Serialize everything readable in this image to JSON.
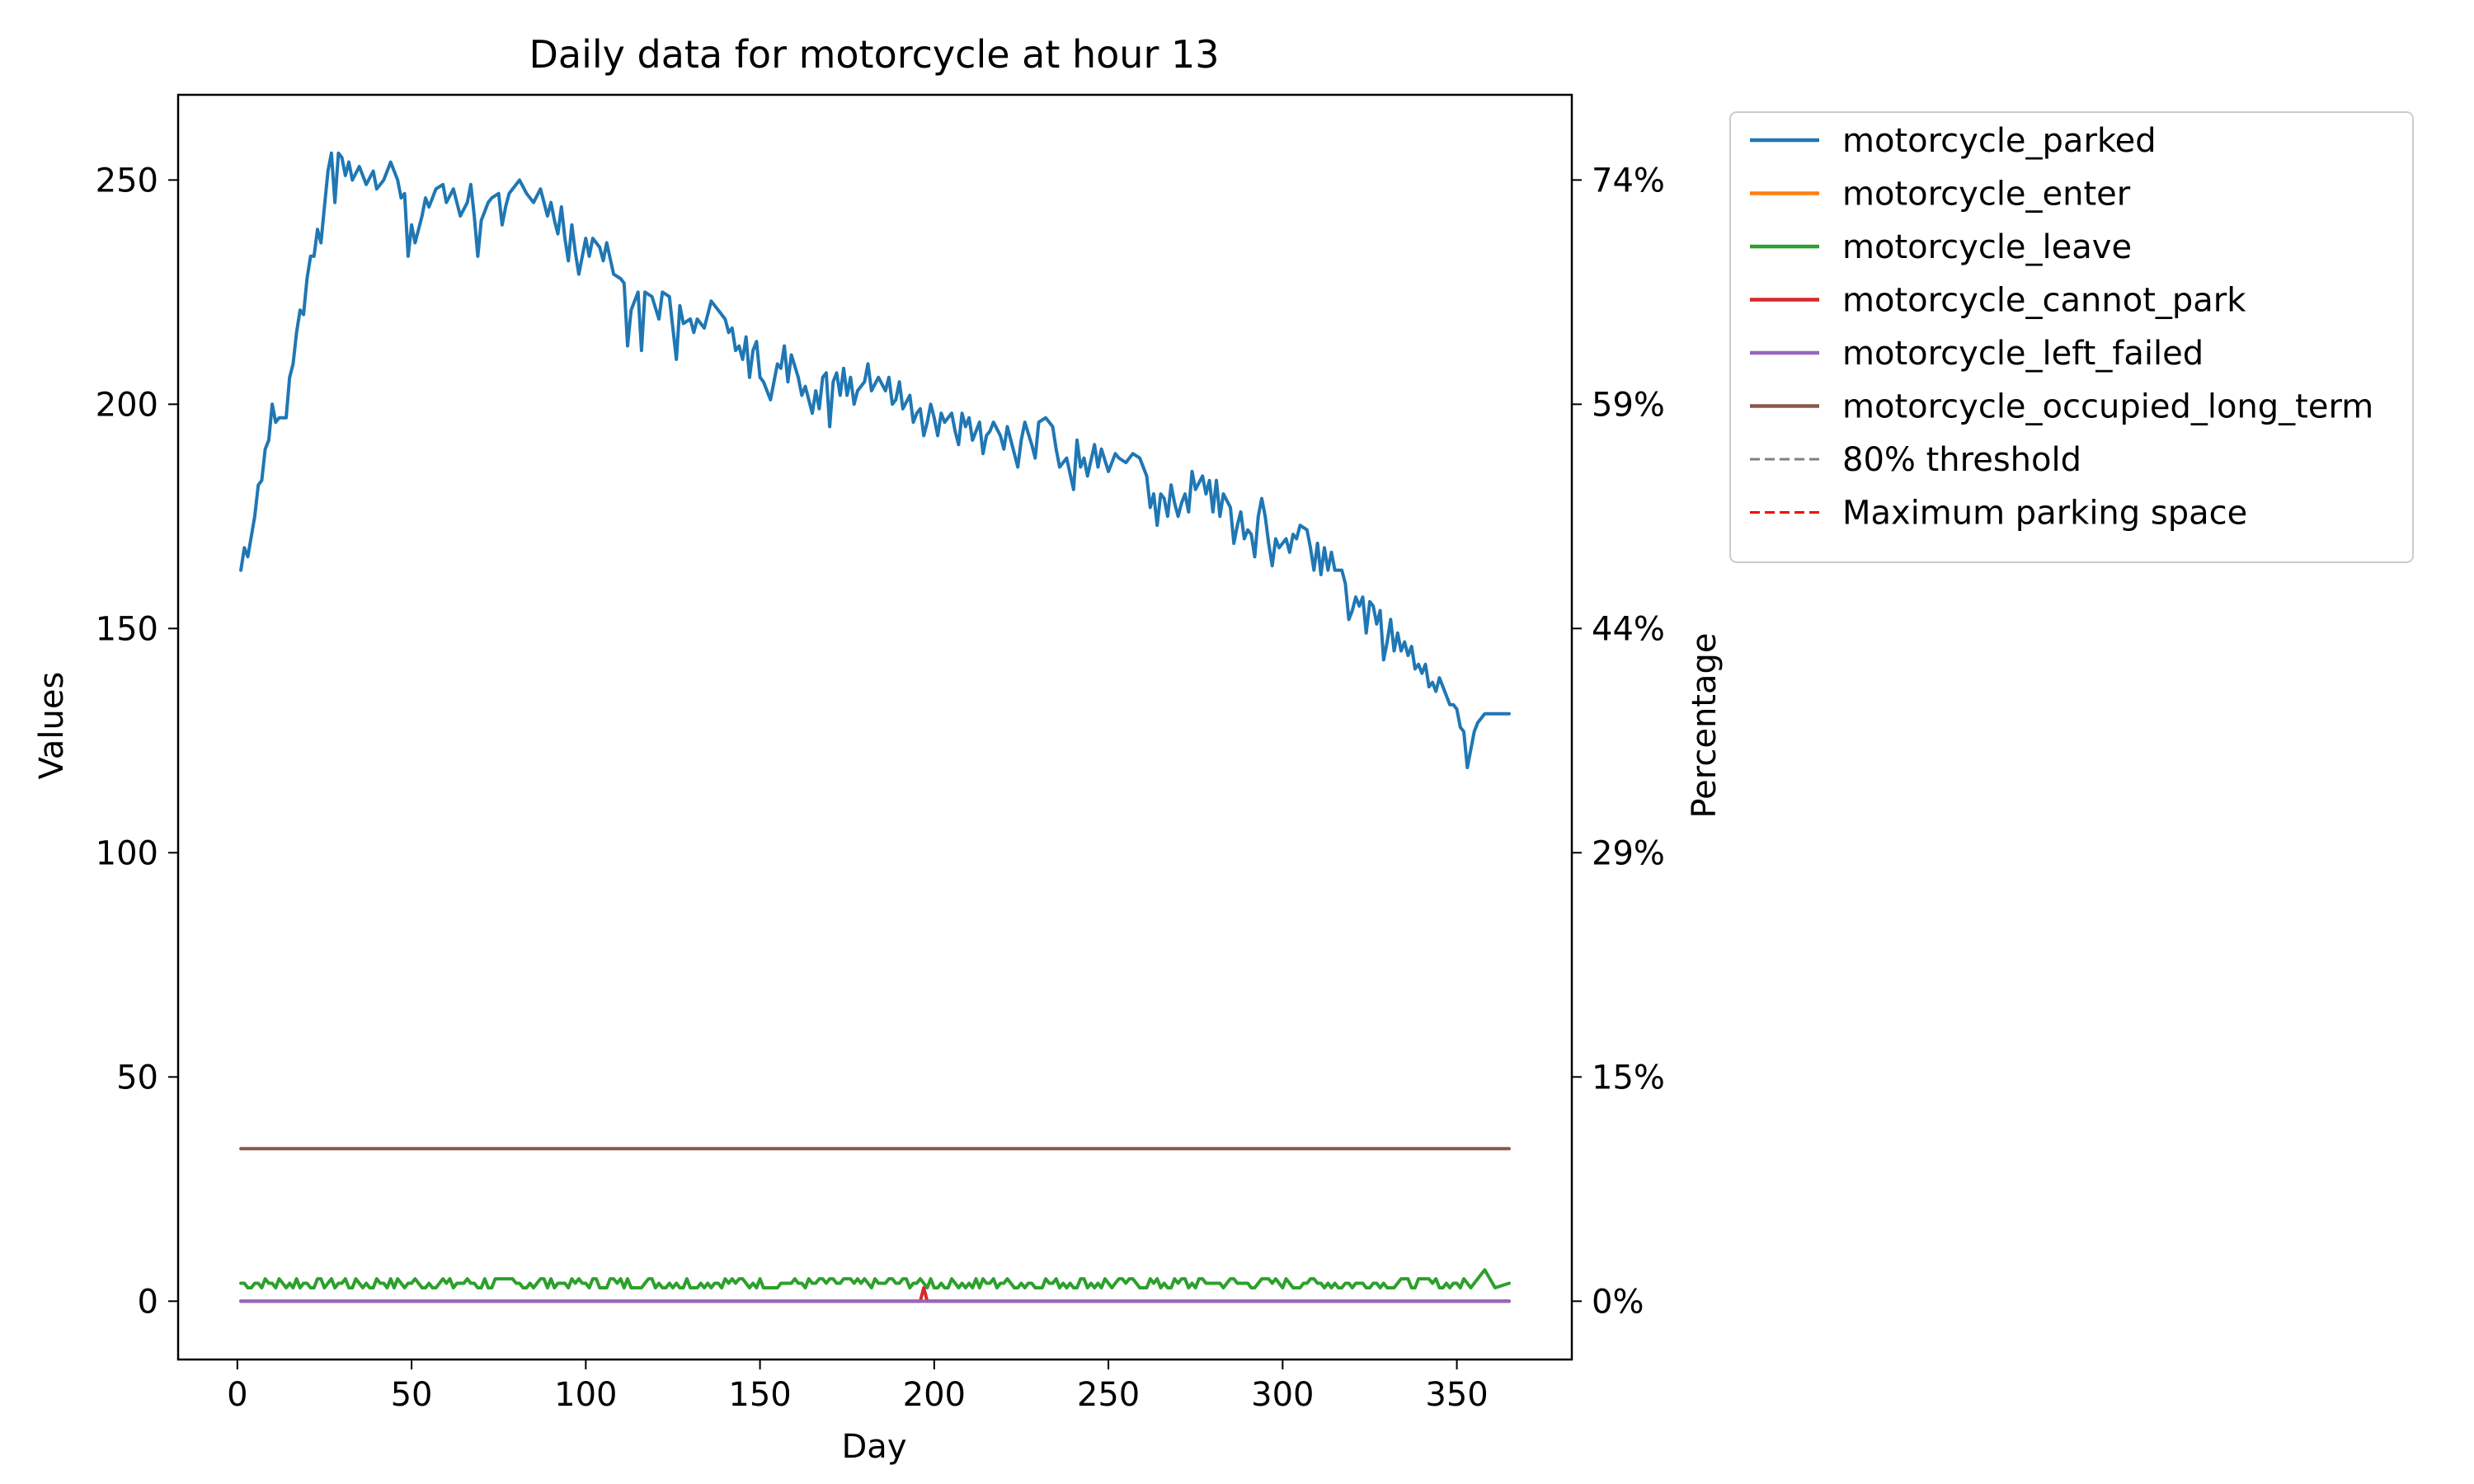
{
  "chart_data": {
    "type": "line",
    "title": "Daily data for motorcycle at hour 13",
    "xlabel": "Day",
    "ylabel": "Values",
    "y2label": "Percentage",
    "xlim": [
      -17,
      383
    ],
    "ylim": [
      -13,
      269
    ],
    "x_ticks": [
      0,
      50,
      100,
      150,
      200,
      250,
      300,
      350
    ],
    "y_ticks": [
      0,
      50,
      100,
      150,
      200,
      250
    ],
    "y2_ticks": [
      "0%",
      "15%",
      "29%",
      "44%",
      "59%",
      "74%"
    ],
    "x": {
      "start": 1,
      "end": 365
    },
    "legend_position": "outside upper right",
    "grid": false,
    "series": [
      {
        "name": "motorcycle_parked",
        "color": "#1f77b4",
        "style": "solid",
        "anchors": [
          [
            1,
            163
          ],
          [
            2,
            168
          ],
          [
            3,
            166
          ],
          [
            5,
            175
          ],
          [
            6,
            182
          ],
          [
            7,
            183
          ],
          [
            8,
            190
          ],
          [
            9,
            192
          ],
          [
            10,
            200
          ],
          [
            11,
            196
          ],
          [
            12,
            197
          ],
          [
            14,
            197
          ],
          [
            15,
            206
          ],
          [
            16,
            209
          ],
          [
            17,
            216
          ],
          [
            18,
            221
          ],
          [
            19,
            220
          ],
          [
            20,
            228
          ],
          [
            21,
            233
          ],
          [
            22,
            233
          ],
          [
            23,
            239
          ],
          [
            24,
            236
          ],
          [
            25,
            244
          ],
          [
            26,
            252
          ],
          [
            27,
            256
          ],
          [
            28,
            245
          ],
          [
            29,
            256
          ],
          [
            30,
            255
          ],
          [
            31,
            251
          ],
          [
            32,
            254
          ],
          [
            33,
            250
          ],
          [
            35,
            253
          ],
          [
            37,
            249
          ],
          [
            39,
            252
          ],
          [
            40,
            248
          ],
          [
            42,
            250
          ],
          [
            44,
            254
          ],
          [
            46,
            250
          ],
          [
            47,
            246
          ],
          [
            48,
            247
          ],
          [
            49,
            233
          ],
          [
            50,
            240
          ],
          [
            51,
            236
          ],
          [
            53,
            242
          ],
          [
            54,
            246
          ],
          [
            55,
            244
          ],
          [
            57,
            248
          ],
          [
            59,
            249
          ],
          [
            60,
            245
          ],
          [
            62,
            248
          ],
          [
            64,
            242
          ],
          [
            66,
            245
          ],
          [
            67,
            249
          ],
          [
            68,
            242
          ],
          [
            69,
            233
          ],
          [
            70,
            241
          ],
          [
            72,
            245
          ],
          [
            73,
            246
          ],
          [
            75,
            247
          ],
          [
            76,
            240
          ],
          [
            77,
            244
          ],
          [
            78,
            247
          ],
          [
            80,
            249
          ],
          [
            81,
            250
          ],
          [
            83,
            247
          ],
          [
            85,
            245
          ],
          [
            87,
            248
          ],
          [
            89,
            242
          ],
          [
            90,
            245
          ],
          [
            91,
            241
          ],
          [
            92,
            238
          ],
          [
            93,
            244
          ],
          [
            94,
            237
          ],
          [
            95,
            232
          ],
          [
            96,
            240
          ],
          [
            97,
            234
          ],
          [
            98,
            229
          ],
          [
            100,
            237
          ],
          [
            101,
            233
          ],
          [
            102,
            237
          ],
          [
            104,
            235
          ],
          [
            105,
            232
          ],
          [
            106,
            236
          ],
          [
            108,
            229
          ],
          [
            110,
            228
          ],
          [
            111,
            227
          ],
          [
            112,
            213
          ],
          [
            113,
            221
          ],
          [
            115,
            225
          ],
          [
            116,
            212
          ],
          [
            117,
            225
          ],
          [
            119,
            224
          ],
          [
            121,
            219
          ],
          [
            122,
            225
          ],
          [
            124,
            224
          ],
          [
            125,
            217
          ],
          [
            126,
            210
          ],
          [
            127,
            222
          ],
          [
            128,
            218
          ],
          [
            130,
            219
          ],
          [
            131,
            216
          ],
          [
            132,
            219
          ],
          [
            134,
            217
          ],
          [
            136,
            223
          ],
          [
            138,
            221
          ],
          [
            140,
            219
          ],
          [
            141,
            216
          ],
          [
            142,
            217
          ],
          [
            143,
            212
          ],
          [
            144,
            213
          ],
          [
            145,
            210
          ],
          [
            146,
            215
          ],
          [
            147,
            206
          ],
          [
            148,
            212
          ],
          [
            149,
            214
          ],
          [
            150,
            206
          ],
          [
            151,
            205
          ],
          [
            153,
            201
          ],
          [
            155,
            209
          ],
          [
            156,
            208
          ],
          [
            157,
            213
          ],
          [
            158,
            205
          ],
          [
            159,
            211
          ],
          [
            161,
            206
          ],
          [
            162,
            202
          ],
          [
            163,
            204
          ],
          [
            165,
            198
          ],
          [
            166,
            203
          ],
          [
            167,
            199
          ],
          [
            168,
            206
          ],
          [
            169,
            207
          ],
          [
            170,
            195
          ],
          [
            171,
            205
          ],
          [
            172,
            207
          ],
          [
            173,
            202
          ],
          [
            174,
            208
          ],
          [
            175,
            202
          ],
          [
            176,
            206
          ],
          [
            177,
            200
          ],
          [
            178,
            203
          ],
          [
            180,
            205
          ],
          [
            181,
            209
          ],
          [
            182,
            203
          ],
          [
            184,
            206
          ],
          [
            186,
            203
          ],
          [
            187,
            206
          ],
          [
            188,
            200
          ],
          [
            189,
            201
          ],
          [
            190,
            205
          ],
          [
            191,
            199
          ],
          [
            193,
            202
          ],
          [
            194,
            196
          ],
          [
            195,
            198
          ],
          [
            196,
            199
          ],
          [
            197,
            193
          ],
          [
            198,
            196
          ],
          [
            199,
            200
          ],
          [
            200,
            197
          ],
          [
            201,
            193
          ],
          [
            202,
            198
          ],
          [
            203,
            196
          ],
          [
            205,
            198
          ],
          [
            206,
            194
          ],
          [
            207,
            191
          ],
          [
            208,
            198
          ],
          [
            209,
            195
          ],
          [
            210,
            197
          ],
          [
            211,
            192
          ],
          [
            213,
            196
          ],
          [
            214,
            189
          ],
          [
            215,
            193
          ],
          [
            216,
            194
          ],
          [
            217,
            196
          ],
          [
            219,
            193
          ],
          [
            220,
            190
          ],
          [
            221,
            195
          ],
          [
            223,
            189
          ],
          [
            224,
            186
          ],
          [
            225,
            192
          ],
          [
            226,
            196
          ],
          [
            228,
            191
          ],
          [
            229,
            188
          ],
          [
            230,
            196
          ],
          [
            232,
            197
          ],
          [
            234,
            195
          ],
          [
            235,
            190
          ],
          [
            236,
            186
          ],
          [
            238,
            188
          ],
          [
            240,
            181
          ],
          [
            241,
            192
          ],
          [
            242,
            186
          ],
          [
            243,
            188
          ],
          [
            244,
            184
          ],
          [
            246,
            191
          ],
          [
            247,
            186
          ],
          [
            248,
            190
          ],
          [
            250,
            185
          ],
          [
            252,
            189
          ],
          [
            253,
            188
          ],
          [
            255,
            187
          ],
          [
            257,
            189
          ],
          [
            259,
            188
          ],
          [
            261,
            184
          ],
          [
            262,
            177
          ],
          [
            263,
            180
          ],
          [
            264,
            173
          ],
          [
            265,
            180
          ],
          [
            266,
            179
          ],
          [
            267,
            175
          ],
          [
            268,
            182
          ],
          [
            269,
            178
          ],
          [
            270,
            175
          ],
          [
            271,
            178
          ],
          [
            272,
            180
          ],
          [
            273,
            176
          ],
          [
            274,
            185
          ],
          [
            275,
            181
          ],
          [
            277,
            184
          ],
          [
            278,
            180
          ],
          [
            279,
            183
          ],
          [
            280,
            176
          ],
          [
            281,
            183
          ],
          [
            282,
            175
          ],
          [
            283,
            180
          ],
          [
            285,
            177
          ],
          [
            286,
            169
          ],
          [
            287,
            173
          ],
          [
            288,
            176
          ],
          [
            289,
            170
          ],
          [
            290,
            172
          ],
          [
            291,
            171
          ],
          [
            292,
            166
          ],
          [
            293,
            175
          ],
          [
            294,
            179
          ],
          [
            295,
            175
          ],
          [
            296,
            169
          ],
          [
            297,
            164
          ],
          [
            298,
            170
          ],
          [
            299,
            168
          ],
          [
            301,
            170
          ],
          [
            302,
            167
          ],
          [
            303,
            171
          ],
          [
            304,
            170
          ],
          [
            305,
            173
          ],
          [
            307,
            172
          ],
          [
            308,
            168
          ],
          [
            309,
            163
          ],
          [
            310,
            169
          ],
          [
            311,
            162
          ],
          [
            312,
            168
          ],
          [
            313,
            163
          ],
          [
            314,
            167
          ],
          [
            315,
            163
          ],
          [
            317,
            163
          ],
          [
            318,
            160
          ],
          [
            319,
            152
          ],
          [
            320,
            154
          ],
          [
            321,
            157
          ],
          [
            322,
            155
          ],
          [
            323,
            157
          ],
          [
            324,
            149
          ],
          [
            325,
            156
          ],
          [
            326,
            155
          ],
          [
            327,
            151
          ],
          [
            328,
            154
          ],
          [
            329,
            143
          ],
          [
            330,
            147
          ],
          [
            331,
            152
          ],
          [
            332,
            145
          ],
          [
            333,
            149
          ],
          [
            334,
            145
          ],
          [
            335,
            147
          ],
          [
            336,
            144
          ],
          [
            337,
            146
          ],
          [
            338,
            141
          ],
          [
            339,
            142
          ],
          [
            340,
            140
          ],
          [
            341,
            142
          ],
          [
            342,
            137
          ],
          [
            343,
            138
          ],
          [
            344,
            136
          ],
          [
            345,
            139
          ],
          [
            346,
            137
          ],
          [
            347,
            135
          ],
          [
            348,
            133
          ],
          [
            349,
            133
          ],
          [
            350,
            132
          ],
          [
            351,
            128
          ],
          [
            352,
            127
          ],
          [
            353,
            119
          ],
          [
            354,
            123
          ],
          [
            355,
            127
          ],
          [
            356,
            129
          ],
          [
            357,
            130
          ],
          [
            358,
            131
          ],
          [
            365,
            131
          ]
        ]
      },
      {
        "name": "motorcycle_enter",
        "color": "#ff7f0e",
        "style": "solid",
        "anchors": [
          [
            1,
            0
          ],
          [
            365,
            0
          ]
        ]
      },
      {
        "name": "motorcycle_leave",
        "color": "#2ca02c",
        "style": "solid",
        "baseline": 4,
        "amplitude": 1.5,
        "anchors": [
          [
            355,
            4
          ],
          [
            358,
            7
          ],
          [
            361,
            3
          ],
          [
            365,
            4
          ]
        ]
      },
      {
        "name": "motorcycle_cannot_park",
        "color": "#d62728",
        "style": "solid",
        "anchors": [
          [
            1,
            0
          ],
          [
            196,
            0
          ],
          [
            197,
            3
          ],
          [
            198,
            0
          ],
          [
            365,
            0
          ]
        ]
      },
      {
        "name": "motorcycle_left_failed",
        "color": "#9467bd",
        "style": "solid",
        "anchors": [
          [
            1,
            0
          ],
          [
            365,
            0
          ]
        ]
      },
      {
        "name": "motorcycle_occupied_long_term",
        "color": "#8c564b",
        "style": "solid",
        "anchors": [
          [
            1,
            34
          ],
          [
            365,
            34
          ]
        ]
      },
      {
        "name": "80% threshold",
        "color": "#808080",
        "style": "dashed",
        "anchors": []
      },
      {
        "name": "Maximum parking space",
        "color": "#ff0000",
        "style": "dashed",
        "anchors": []
      }
    ]
  }
}
